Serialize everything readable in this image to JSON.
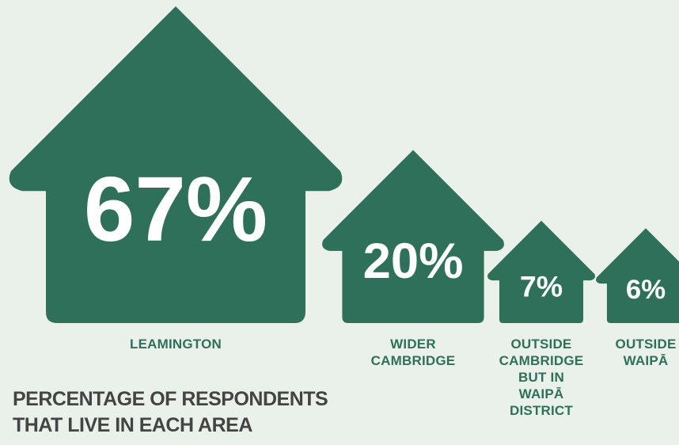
{
  "chart_data": {
    "type": "pictogram",
    "title": "PERCENTAGE OF RESPONDENTS\nTHAT LIVE IN EACH AREA",
    "unit": "%",
    "categories": [
      "LEAMINGTON",
      "WIDER\nCAMBRIDGE",
      "OUTSIDE\nCAMBRIDGE\nBUT IN\nWAIPĀ\nDISTRICT",
      "OUTSIDE\nWAIPĀ"
    ],
    "values": [
      67,
      20,
      7,
      6
    ],
    "value_labels": [
      "67%",
      "20%",
      "7%",
      "6%"
    ]
  },
  "colors": {
    "background": "#eaf0ea",
    "house": "#2f705b",
    "label": "#2f705b",
    "title": "#444444",
    "value_text": "#ffffff"
  },
  "icons": [
    "house-icon"
  ]
}
